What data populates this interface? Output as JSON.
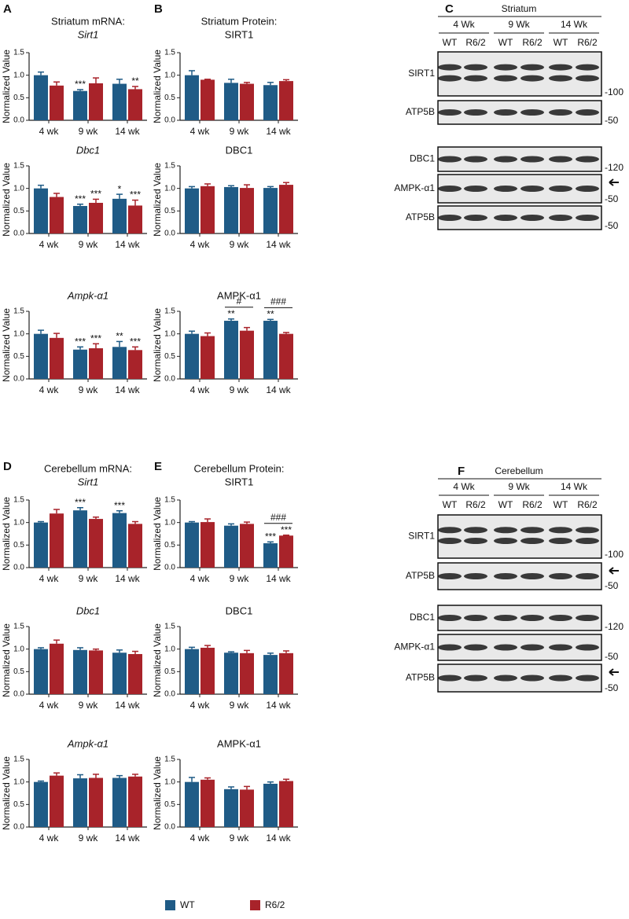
{
  "panels": [
    "A",
    "B",
    "C",
    "D",
    "E",
    "F"
  ],
  "legend": [
    {
      "name": "WT",
      "color": "#1f5b86"
    },
    {
      "name": "R6/2",
      "color": "#a8232a"
    }
  ],
  "chart_data": [
    {
      "type": "bar",
      "title": "Striatum mRNA:",
      "subtitle": "Sirt1",
      "italic_gene": true,
      "ylabel": "Normalized Value",
      "categories": [
        "4 wk",
        "9 wk",
        "14 wk"
      ],
      "ylim": [
        0,
        1.5
      ],
      "yticks": [
        {
          "value": 0,
          "label": "0.0"
        },
        {
          "value": 0.5,
          "label": "0.5"
        },
        {
          "value": 1,
          "label": "1.0"
        },
        {
          "value": 1.5,
          "label": "1.5"
        }
      ],
      "series": [
        {
          "values": [
            1.0,
            0.65,
            0.81
          ],
          "errors": [
            0.07,
            0.03,
            0.1
          ],
          "annotations": [
            null,
            "***",
            null
          ]
        },
        {
          "values": [
            0.77,
            0.82,
            0.69
          ],
          "errors": [
            0.08,
            0.12,
            0.06
          ],
          "annotations": [
            null,
            null,
            "**"
          ]
        }
      ]
    },
    {
      "type": "bar",
      "title": "Dbc1",
      "italic_gene": true,
      "ylabel": "Normalized Value",
      "categories": [
        "4 wk",
        "9 wk",
        "14 wk"
      ],
      "ylim": [
        0,
        1.5
      ],
      "yticks": [
        {
          "value": 0,
          "label": "0.0"
        },
        {
          "value": 0.5,
          "label": "0.5"
        },
        {
          "value": 1,
          "label": "1.0"
        },
        {
          "value": 1.5,
          "label": "1.5"
        }
      ],
      "series": [
        {
          "values": [
            1.0,
            0.61,
            0.77
          ],
          "errors": [
            0.07,
            0.04,
            0.1
          ],
          "annotations": [
            null,
            "***",
            "*"
          ]
        },
        {
          "values": [
            0.81,
            0.68,
            0.62
          ],
          "errors": [
            0.08,
            0.08,
            0.12
          ],
          "annotations": [
            null,
            "***",
            "***"
          ]
        }
      ]
    },
    {
      "type": "bar",
      "title": "Ampk-α1",
      "italic_gene": true,
      "ylabel": "Normalized Value",
      "categories": [
        "4 wk",
        "9 wk",
        "14 wk"
      ],
      "ylim": [
        0,
        1.5
      ],
      "yticks": [
        {
          "value": 0,
          "label": "0.0"
        },
        {
          "value": 0.5,
          "label": "0.5"
        },
        {
          "value": 1,
          "label": "1.0"
        },
        {
          "value": 1.5,
          "label": "1.5"
        }
      ],
      "series": [
        {
          "values": [
            1.0,
            0.65,
            0.71
          ],
          "errors": [
            0.08,
            0.06,
            0.12
          ],
          "annotations": [
            null,
            "***",
            "**"
          ]
        },
        {
          "values": [
            0.91,
            0.68,
            0.64
          ],
          "errors": [
            0.1,
            0.1,
            0.07
          ],
          "annotations": [
            null,
            "***",
            "***"
          ]
        }
      ]
    },
    {
      "type": "bar",
      "title": "Striatum Protein:",
      "subtitle": "SIRT1",
      "ylabel": "Normalized Value",
      "categories": [
        "4 wk",
        "9 wk",
        "14 wk"
      ],
      "ylim": [
        0,
        1.5
      ],
      "yticks": [
        {
          "value": 0,
          "label": "0.0"
        },
        {
          "value": 0.5,
          "label": "0.5"
        },
        {
          "value": 1,
          "label": "1.0"
        },
        {
          "value": 1.5,
          "label": "1.5"
        }
      ],
      "series": [
        {
          "values": [
            1.0,
            0.83,
            0.78
          ],
          "errors": [
            0.1,
            0.08,
            0.06
          ]
        },
        {
          "values": [
            0.9,
            0.81,
            0.87
          ],
          "errors": [
            0.01,
            0.03,
            0.03
          ]
        }
      ]
    },
    {
      "type": "bar",
      "title": "DBC1",
      "ylabel": "Normalized Value",
      "categories": [
        "4 wk",
        "9 wk",
        "14 wk"
      ],
      "ylim": [
        0,
        1.5
      ],
      "yticks": [
        {
          "value": 0,
          "label": "0.0"
        },
        {
          "value": 0.5,
          "label": "0.5"
        },
        {
          "value": 1,
          "label": "1.0"
        },
        {
          "value": 1.5,
          "label": "1.5"
        }
      ],
      "series": [
        {
          "values": [
            1.0,
            1.03,
            1.01
          ],
          "errors": [
            0.04,
            0.03,
            0.03
          ]
        },
        {
          "values": [
            1.05,
            1.01,
            1.08
          ],
          "errors": [
            0.05,
            0.07,
            0.05
          ]
        }
      ]
    },
    {
      "type": "bar",
      "title": "AMPK-α1",
      "ylabel": "Normalized Value",
      "categories": [
        "4 wk",
        "9 wk",
        "14 wk"
      ],
      "ylim": [
        0,
        1.5
      ],
      "yticks": [
        {
          "value": 0,
          "label": "0.0"
        },
        {
          "value": 0.5,
          "label": "0.5"
        },
        {
          "value": 1,
          "label": "1.0"
        },
        {
          "value": 1.5,
          "label": "1.5"
        }
      ],
      "series": [
        {
          "values": [
            1.0,
            1.29,
            1.29
          ],
          "errors": [
            0.06,
            0.04,
            0.03
          ],
          "annotations": [
            null,
            "**",
            "**"
          ]
        },
        {
          "values": [
            0.95,
            1.07,
            1.0
          ],
          "errors": [
            0.07,
            0.07,
            0.03
          ]
        }
      ],
      "bracket_annotations": [
        null,
        "#",
        "###"
      ]
    },
    {
      "type": "bar",
      "title": "Cerebellum mRNA:",
      "subtitle": "Sirt1",
      "italic_gene": true,
      "ylabel": "Normalized Value",
      "categories": [
        "4 wk",
        "9 wk",
        "14 wk"
      ],
      "ylim": [
        0,
        1.5
      ],
      "yticks": [
        {
          "value": 0,
          "label": "0.0"
        },
        {
          "value": 0.5,
          "label": "0.5"
        },
        {
          "value": 1,
          "label": "1.0"
        },
        {
          "value": 1.5,
          "label": "1.5"
        }
      ],
      "series": [
        {
          "values": [
            1.0,
            1.27,
            1.21
          ],
          "errors": [
            0.02,
            0.06,
            0.05
          ],
          "annotations": [
            null,
            "***",
            "***"
          ]
        },
        {
          "values": [
            1.2,
            1.08,
            0.97
          ],
          "errors": [
            0.09,
            0.04,
            0.05
          ]
        }
      ]
    },
    {
      "type": "bar",
      "title": "Dbc1",
      "italic_gene": true,
      "ylabel": "Normalized Value",
      "categories": [
        "4 wk",
        "9 wk",
        "14 wk"
      ],
      "ylim": [
        0,
        1.5
      ],
      "yticks": [
        {
          "value": 0,
          "label": "0.0"
        },
        {
          "value": 0.5,
          "label": "0.5"
        },
        {
          "value": 1,
          "label": "1.0"
        },
        {
          "value": 1.5,
          "label": "1.5"
        }
      ],
      "series": [
        {
          "values": [
            1.0,
            0.98,
            0.92
          ],
          "errors": [
            0.03,
            0.05,
            0.06
          ]
        },
        {
          "values": [
            1.12,
            0.97,
            0.89
          ],
          "errors": [
            0.08,
            0.03,
            0.06
          ]
        }
      ]
    },
    {
      "type": "bar",
      "title": "Ampk-α1",
      "italic_gene": true,
      "ylabel": "Normalized Value",
      "categories": [
        "4 wk",
        "9 wk",
        "14 wk"
      ],
      "ylim": [
        0,
        1.5
      ],
      "yticks": [
        {
          "value": 0,
          "label": "0.0"
        },
        {
          "value": 0.5,
          "label": "0.5"
        },
        {
          "value": 1,
          "label": "1.0"
        },
        {
          "value": 1.5,
          "label": "1.5"
        }
      ],
      "series": [
        {
          "values": [
            1.0,
            1.08,
            1.09
          ],
          "errors": [
            0.02,
            0.08,
            0.05
          ]
        },
        {
          "values": [
            1.14,
            1.09,
            1.12
          ],
          "errors": [
            0.06,
            0.08,
            0.05
          ]
        }
      ]
    },
    {
      "type": "bar",
      "title": "Cerebellum Protein:",
      "subtitle": "SIRT1",
      "ylabel": "Normalized Value",
      "categories": [
        "4 wk",
        "9 wk",
        "14 wk"
      ],
      "ylim": [
        0,
        1.5
      ],
      "yticks": [
        {
          "value": 0,
          "label": "0.0"
        },
        {
          "value": 0.5,
          "label": "0.5"
        },
        {
          "value": 1,
          "label": "1.0"
        },
        {
          "value": 1.5,
          "label": "1.5"
        }
      ],
      "series": [
        {
          "values": [
            1.0,
            0.93,
            0.54
          ],
          "errors": [
            0.02,
            0.04,
            0.03
          ],
          "annotations": [
            null,
            null,
            "***"
          ]
        },
        {
          "values": [
            1.01,
            0.97,
            0.71
          ],
          "errors": [
            0.07,
            0.04,
            0.01
          ],
          "annotations": [
            null,
            null,
            "***"
          ]
        }
      ],
      "bracket_annotations": [
        null,
        null,
        "###"
      ]
    },
    {
      "type": "bar",
      "title": "DBC1",
      "ylabel": "Normalized Value",
      "categories": [
        "4 wk",
        "9 wk",
        "14 wk"
      ],
      "ylim": [
        0,
        1.5
      ],
      "yticks": [
        {
          "value": 0,
          "label": "0.0"
        },
        {
          "value": 0.5,
          "label": "0.5"
        },
        {
          "value": 1,
          "label": "1.0"
        },
        {
          "value": 1.5,
          "label": "1.5"
        }
      ],
      "series": [
        {
          "values": [
            1.0,
            0.92,
            0.87
          ],
          "errors": [
            0.04,
            0.02,
            0.04
          ]
        },
        {
          "values": [
            1.03,
            0.91,
            0.91
          ],
          "errors": [
            0.05,
            0.06,
            0.05
          ]
        }
      ]
    },
    {
      "type": "bar",
      "title": "AMPK-α1",
      "ylabel": "Normalized Value",
      "categories": [
        "4 wk",
        "9 wk",
        "14 wk"
      ],
      "ylim": [
        0,
        1.5
      ],
      "yticks": [
        {
          "value": 0,
          "label": "0.0"
        },
        {
          "value": 0.5,
          "label": "0.5"
        },
        {
          "value": 1,
          "label": "1.0"
        },
        {
          "value": 1.5,
          "label": "1.5"
        }
      ],
      "series": [
        {
          "values": [
            1.0,
            0.84,
            0.96
          ],
          "errors": [
            0.1,
            0.05,
            0.04
          ]
        },
        {
          "values": [
            1.05,
            0.83,
            1.02
          ],
          "errors": [
            0.04,
            0.07,
            0.04
          ]
        }
      ]
    }
  ],
  "blots": [
    {
      "title": "Striatum",
      "groups": [
        "4 Wk",
        "9 Wk",
        "14 Wk"
      ],
      "lanes": [
        "WT",
        "R6/2"
      ],
      "rows": [
        {
          "label": "SIRT1",
          "marker": "-100"
        },
        {
          "label": "ATP5B",
          "marker": "-50"
        },
        {
          "label": "DBC1",
          "marker": "-120"
        },
        {
          "label": "AMPK-α1",
          "marker": "-50",
          "arrow": true
        },
        {
          "label": "ATP5B",
          "marker": "-50"
        }
      ]
    },
    {
      "title": "Cerebellum",
      "groups": [
        "4 Wk",
        "9 Wk",
        "14 Wk"
      ],
      "lanes": [
        "WT",
        "R6/2"
      ],
      "rows": [
        {
          "label": "SIRT1",
          "marker": "-100"
        },
        {
          "label": "ATP5B",
          "marker": "-50",
          "arrow": true
        },
        {
          "label": "DBC1",
          "marker": "-120"
        },
        {
          "label": "AMPK-α1",
          "marker": "-50"
        },
        {
          "label": "ATP5B",
          "marker": "-50",
          "arrow": true
        }
      ]
    }
  ]
}
